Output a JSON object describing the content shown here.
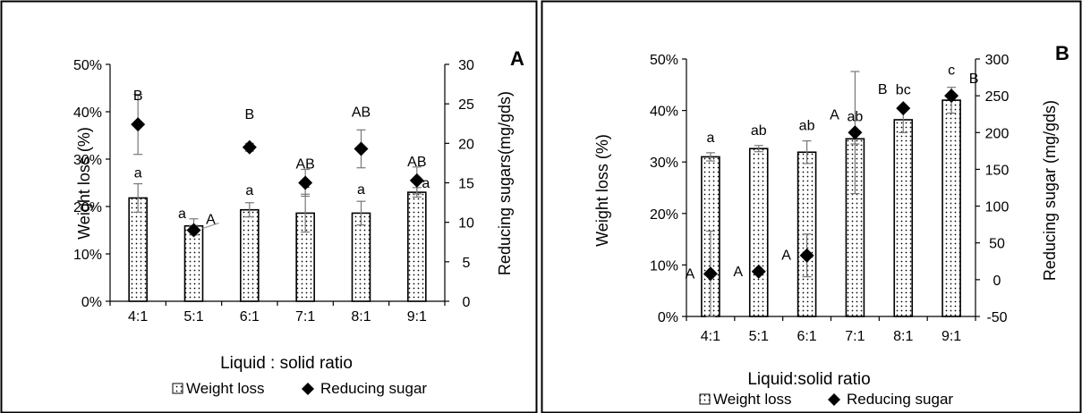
{
  "chart_data": [
    {
      "type": "bar",
      "panel_label": "A",
      "categories": [
        "4:1",
        "5:1",
        "6:1",
        "7:1",
        "8:1",
        "9:1"
      ],
      "xlabel": "Liquid : solid ratio",
      "ylabel": "Weight loss (%)",
      "y2label": "Reducing sugars(mg/gds)",
      "ylim": [
        0,
        50
      ],
      "y_ticks": [
        "0%",
        "10%",
        "20%",
        "30%",
        "40%",
        "50%"
      ],
      "y2lim": [
        0,
        30
      ],
      "y2_ticks": [
        "0",
        "5",
        "10",
        "15",
        "20",
        "25",
        "30"
      ],
      "series": [
        {
          "name": "Weight loss",
          "kind": "bar",
          "axis": "left",
          "values": [
            21.8,
            15.9,
            19.3,
            18.6,
            18.6,
            23.0
          ],
          "errors": [
            3.0,
            1.5,
            1.5,
            4.0,
            2.5,
            1.0
          ],
          "labels": [
            "a",
            "a",
            "a",
            "a",
            "a",
            "a"
          ]
        },
        {
          "name": "Reducing sugar",
          "kind": "marker",
          "axis": "right",
          "values": [
            22.4,
            9.0,
            19.5,
            15.0,
            19.3,
            15.3
          ],
          "errors": [
            3.8,
            0.6,
            0.5,
            1.7,
            2.4,
            1.7
          ],
          "labels": [
            "B",
            "A",
            "B",
            "AB",
            "AB",
            "AB"
          ]
        }
      ],
      "legend": [
        "Weight loss",
        "Reducing sugar"
      ],
      "legend_position": "bottom"
    },
    {
      "type": "bar",
      "panel_label": "B",
      "categories": [
        "4:1",
        "5:1",
        "6:1",
        "7:1",
        "8:1",
        "9:1"
      ],
      "xlabel": "Liquid:solid ratio",
      "ylabel": "Weight loss (%)",
      "y2label": "Reducing sugar (mg/gds)",
      "ylim": [
        0,
        50
      ],
      "y_ticks": [
        "0%",
        "10%",
        "20%",
        "30%",
        "40%",
        "50%"
      ],
      "y2lim": [
        -50,
        300
      ],
      "y2_ticks": [
        "-50",
        "0",
        "50",
        "100",
        "150",
        "200",
        "250",
        "300"
      ],
      "series": [
        {
          "name": "Weight loss",
          "kind": "bar",
          "axis": "left",
          "values": [
            31.0,
            32.6,
            31.9,
            34.5,
            38.2,
            42.0
          ],
          "errors": [
            0.8,
            0.6,
            2.2,
            1.0,
            2.5,
            2.5
          ],
          "labels": [
            "a",
            "ab",
            "ab",
            "ab",
            "bc",
            "c"
          ]
        },
        {
          "name": "Reducing sugar",
          "kind": "marker",
          "axis": "right",
          "values": [
            8,
            11,
            33,
            200,
            233,
            250
          ],
          "errors": [
            58,
            0,
            29,
            83,
            0,
            0
          ],
          "labels": [
            "A",
            "A",
            "A",
            "A",
            "B",
            "B"
          ]
        }
      ],
      "legend": [
        "Weight loss",
        "Reducing sugar"
      ],
      "legend_position": "bottom"
    }
  ]
}
